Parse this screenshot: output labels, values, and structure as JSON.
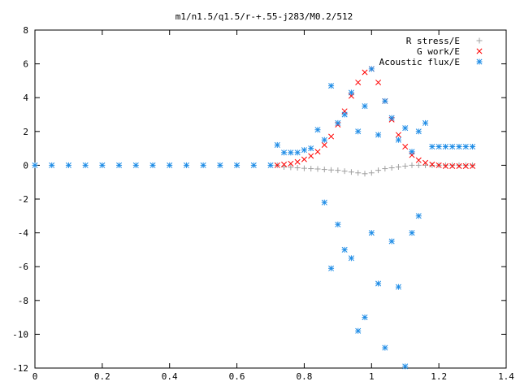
{
  "chart_data": {
    "type": "scatter",
    "title": "m1/n1.5/q1.5/r-+.55-j283/M0.2/512",
    "xlabel": "",
    "ylabel": "",
    "xlim": [
      0,
      1.4
    ],
    "ylim": [
      -12,
      8
    ],
    "x_ticks": [
      0,
      0.2,
      0.4,
      0.6,
      0.8,
      1,
      1.2,
      1.4
    ],
    "y_ticks": [
      -12,
      -10,
      -8,
      -6,
      -4,
      -2,
      0,
      2,
      4,
      6,
      8
    ],
    "x_tick_labels": [
      "0",
      "0.2",
      "0.4",
      "0.6",
      "0.8",
      "1",
      "1.2",
      "1.4"
    ],
    "y_tick_labels": [
      "-12",
      "-10",
      "-8",
      "-6",
      "-4",
      "-2",
      "0",
      "2",
      "4",
      "6",
      "8"
    ],
    "grid": false,
    "legend_position": "top-right",
    "series": [
      {
        "name": "R stress/E",
        "marker": "plus",
        "color": "#a0a0a0",
        "x": [
          0.72,
          0.74,
          0.76,
          0.78,
          0.8,
          0.82,
          0.84,
          0.86,
          0.88,
          0.9,
          0.92,
          0.94,
          0.96,
          0.98,
          1.0,
          1.02,
          1.04,
          1.06,
          1.08,
          1.1,
          1.12,
          1.14,
          1.16,
          1.18,
          1.2,
          1.22,
          1.24,
          1.26,
          1.28,
          1.3
        ],
        "y": [
          0.0,
          -0.1,
          -0.12,
          -0.15,
          -0.18,
          -0.2,
          -0.22,
          -0.25,
          -0.28,
          -0.3,
          -0.35,
          -0.4,
          -0.45,
          -0.5,
          -0.45,
          -0.3,
          -0.2,
          -0.15,
          -0.1,
          -0.05,
          0.0,
          0.0,
          0.0,
          0.0,
          0.0,
          0.0,
          0.0,
          0.0,
          0.0,
          0.0
        ]
      },
      {
        "name": "G work/E",
        "marker": "cross",
        "color": "#ff0000",
        "x": [
          0.72,
          0.74,
          0.76,
          0.78,
          0.8,
          0.82,
          0.84,
          0.86,
          0.88,
          0.9,
          0.92,
          0.94,
          0.96,
          0.98,
          1.0,
          1.02,
          1.04,
          1.06,
          1.08,
          1.1,
          1.12,
          1.14,
          1.16,
          1.18,
          1.2,
          1.22,
          1.24,
          1.26,
          1.28,
          1.3
        ],
        "y": [
          0.0,
          0.05,
          0.1,
          0.2,
          0.35,
          0.55,
          0.8,
          1.2,
          1.7,
          2.4,
          3.2,
          4.1,
          4.9,
          5.5,
          5.7,
          4.9,
          3.8,
          2.7,
          1.8,
          1.1,
          0.6,
          0.3,
          0.15,
          0.05,
          0.0,
          -0.05,
          -0.05,
          -0.05,
          -0.05,
          -0.05
        ]
      },
      {
        "name": "Acoustic flux/E",
        "marker": "star",
        "color": "#1e8ce6",
        "x": [
          0.0,
          0.05,
          0.1,
          0.15,
          0.2,
          0.25,
          0.3,
          0.35,
          0.4,
          0.45,
          0.5,
          0.55,
          0.6,
          0.65,
          0.7,
          0.72,
          0.74,
          0.76,
          0.78,
          0.8,
          0.82,
          0.84,
          0.86,
          0.86,
          0.88,
          0.88,
          0.9,
          0.9,
          0.92,
          0.92,
          0.94,
          0.94,
          0.96,
          0.96,
          0.98,
          0.98,
          1.0,
          1.0,
          1.02,
          1.02,
          1.04,
          1.04,
          1.06,
          1.06,
          1.08,
          1.08,
          1.1,
          1.1,
          1.12,
          1.12,
          1.14,
          1.14,
          1.16,
          1.18,
          1.2,
          1.22,
          1.24,
          1.26,
          1.28,
          1.3
        ],
        "y": [
          0.0,
          0.0,
          0.0,
          0.0,
          0.0,
          0.0,
          0.0,
          0.0,
          0.0,
          0.0,
          0.0,
          0.0,
          0.0,
          0.0,
          0.0,
          1.2,
          0.75,
          0.75,
          0.75,
          0.9,
          1.0,
          2.1,
          -2.2,
          1.5,
          4.7,
          -6.1,
          2.5,
          -3.5,
          3.0,
          -5.0,
          4.3,
          -5.5,
          -9.8,
          2.0,
          3.5,
          -9.0,
          -4.0,
          5.7,
          -7.0,
          1.8,
          -10.8,
          3.8,
          -4.5,
          2.8,
          1.5,
          -7.2,
          -11.9,
          2.2,
          0.8,
          -4.0,
          2.0,
          -3.0,
          2.5,
          1.1,
          1.1,
          1.1,
          1.1,
          1.1,
          1.1,
          1.1
        ]
      }
    ]
  }
}
